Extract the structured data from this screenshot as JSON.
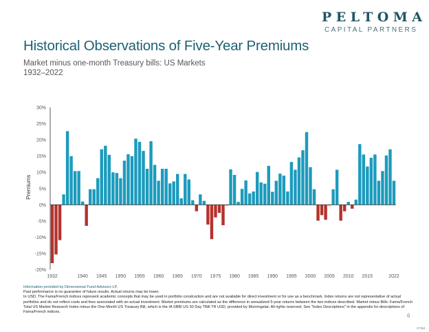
{
  "logo": {
    "name": "PELTOMA",
    "tagline": "CAPITAL PARTNERS"
  },
  "title": "Historical Observations of Five-Year Premiums",
  "subtitle": "Market minus one-month Treasury bills: US Markets",
  "date_range": "1932–2022",
  "colors": {
    "positive": "#1c9bbd",
    "negative": "#b5322d",
    "title": "#1d6074"
  },
  "chart_data": {
    "type": "bar",
    "title": "Historical Observations of Five-Year Premiums",
    "xlabel": "",
    "ylabel": "Premiums",
    "ylim": [
      -20,
      30
    ],
    "yticks": [
      -20,
      -15,
      -10,
      -5,
      0,
      5,
      10,
      15,
      20,
      25,
      30
    ],
    "ytick_labels": [
      "-20%",
      "-15%",
      "-10%",
      "-5%",
      "0%",
      "5%",
      "10%",
      "15%",
      "20%",
      "25%",
      "30%"
    ],
    "xtick_labels": [
      "1932",
      "1940",
      "1945",
      "1950",
      "1955",
      "1960",
      "1965",
      "1970",
      "1975",
      "1980",
      "1985",
      "1990",
      "1995",
      "2000",
      "2005",
      "2010",
      "2015",
      "2022"
    ],
    "grid": false,
    "categories": [
      "1932",
      "1933",
      "1934",
      "1935",
      "1936",
      "1937",
      "1938",
      "1939",
      "1940",
      "1941",
      "1942",
      "1943",
      "1944",
      "1945",
      "1946",
      "1947",
      "1948",
      "1949",
      "1950",
      "1951",
      "1952",
      "1953",
      "1954",
      "1955",
      "1956",
      "1957",
      "1958",
      "1959",
      "1960",
      "1961",
      "1962",
      "1963",
      "1964",
      "1965",
      "1966",
      "1967",
      "1968",
      "1969",
      "1970",
      "1971",
      "1972",
      "1973",
      "1974",
      "1975",
      "1976",
      "1977",
      "1978",
      "1979",
      "1980",
      "1981",
      "1982",
      "1983",
      "1984",
      "1985",
      "1986",
      "1987",
      "1988",
      "1989",
      "1990",
      "1991",
      "1992",
      "1993",
      "1994",
      "1995",
      "1996",
      "1997",
      "1998",
      "1999",
      "2000",
      "2001",
      "2002",
      "2003",
      "2004",
      "2005",
      "2006",
      "2007",
      "2008",
      "2009",
      "2010",
      "2011",
      "2012",
      "2013",
      "2014",
      "2015",
      "2016",
      "2017",
      "2018",
      "2019",
      "2020",
      "2021",
      "2022"
    ],
    "values": [
      -18.0,
      -15.3,
      -10.9,
      3.2,
      22.7,
      15.0,
      10.4,
      10.4,
      1.0,
      -6.5,
      4.8,
      4.8,
      8.2,
      17.1,
      18.2,
      15.4,
      10.0,
      9.8,
      8.2,
      13.6,
      15.6,
      15.0,
      20.4,
      19.4,
      16.6,
      11.1,
      19.6,
      12.3,
      7.4,
      11.1,
      11.1,
      6.6,
      7.2,
      9.5,
      2.0,
      9.5,
      7.8,
      1.4,
      -2.0,
      3.2,
      1.2,
      -6.1,
      -10.6,
      -3.9,
      -2.5,
      -6.3,
      -0.2,
      10.9,
      9.2,
      0.9,
      4.9,
      7.5,
      3.5,
      4.1,
      10.1,
      6.9,
      6.5,
      12.0,
      4.0,
      7.4,
      9.6,
      9.0,
      4.1,
      13.2,
      10.8,
      14.6,
      16.8,
      22.4,
      11.6,
      4.8,
      -4.9,
      -3.2,
      -4.6,
      -0.2,
      4.8,
      10.8,
      -4.9,
      -2.0,
      0.9,
      -1.2,
      1.6,
      18.7,
      15.5,
      11.8,
      14.5,
      15.5,
      7.4,
      10.4,
      15.2,
      17.1,
      7.4
    ]
  },
  "footer": {
    "source": "Information provided by Dimensional Fund Advisors LP.",
    "lines": [
      "Past performance is no guarantee of future results. Actual returns may be lower.",
      "In USD. The Fama/French indices represent academic concepts that may be used in portfolio construction and are not available for direct investment or for use as a benchmark. Index returns are not representative of actual portfolios and do not reflect costs and fees associated with an actual investment. Market premiums are calculated as the difference in annualized 5-year returns between the two indices described. Market minus Bills: Fama/French Total US Market Research Index minus the One-Month US Treasury Bill, which is the IA SBBI US 30 Day TBill TR USD, provided by Morningstar. All rights reserved. See \"Index Descriptions\" in the appendix for descriptions of Fama/French indices."
    ]
  },
  "page_number": "6",
  "doc_code": "27354"
}
